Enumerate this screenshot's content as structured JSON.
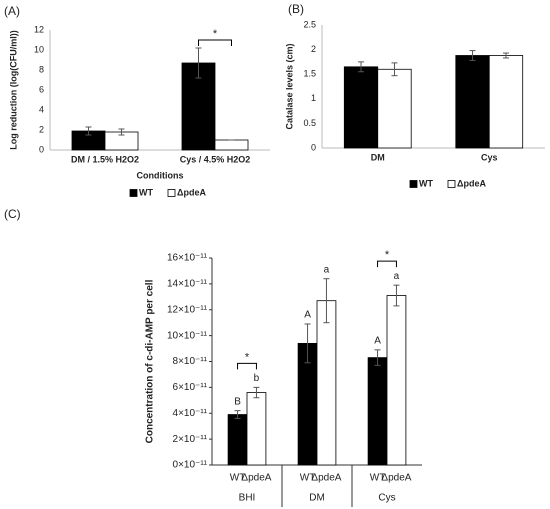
{
  "chart_data": [
    {
      "type": "bar",
      "panel": "(A)",
      "ylabel": "Log reduction (log(CFU/ml))",
      "xlabel": "Conditions",
      "categories": [
        "DM / 1.5%  H2O2",
        "Cys / 4.5%  H2O2"
      ],
      "series": [
        {
          "name": "WT",
          "color": "#000000",
          "values": [
            1.9,
            8.7
          ],
          "errors": [
            0.4,
            1.5
          ]
        },
        {
          "name": "ΔpdeA",
          "color": "#ffffff",
          "values": [
            1.8,
            1.0
          ],
          "errors": [
            0.3,
            0
          ]
        }
      ],
      "ylim": [
        0,
        12
      ],
      "yticks": [
        0,
        2,
        4,
        6,
        8,
        10,
        12
      ],
      "annotations": [
        "*"
      ],
      "legend": "bottom"
    },
    {
      "type": "bar",
      "panel": "(B)",
      "ylabel": "Catalase levels (cm)",
      "categories": [
        "DM",
        "Cys"
      ],
      "series": [
        {
          "name": "WT",
          "color": "#000000",
          "values": [
            1.65,
            1.88
          ],
          "errors": [
            0.1,
            0.1
          ]
        },
        {
          "name": "ΔpdeA",
          "color": "#ffffff",
          "values": [
            1.6,
            1.88
          ],
          "errors": [
            0.13,
            0.05
          ]
        }
      ],
      "ylim": [
        0,
        2.5
      ],
      "yticks": [
        0,
        0.5,
        1,
        1.5,
        2,
        2.5
      ],
      "legend": "bottom"
    },
    {
      "type": "bar",
      "panel": "(C)",
      "ylabel": "Concentration of c-di-AMP per cell",
      "categories": [
        "BHI",
        "DM",
        "Cys"
      ],
      "series": [
        {
          "name": "WT",
          "color": "#000000",
          "values": [
            3.9e-11,
            9.4e-11,
            8.3e-11
          ],
          "errors": [
            3e-12,
            1.5e-11,
            6e-12
          ],
          "letters": [
            "B",
            "A",
            "A"
          ]
        },
        {
          "name": "ΔpdeA",
          "color": "#ffffff",
          "values": [
            5.6e-11,
            1.27e-10,
            1.31e-10
          ],
          "errors": [
            4e-12,
            1.7e-11,
            8e-12
          ],
          "letters": [
            "b",
            "a",
            "a"
          ]
        }
      ],
      "ylim": [
        0,
        1.6e-10
      ],
      "yticks": [
        {
          "value": 0,
          "label": "0×10⁻¹¹"
        },
        {
          "value": 2e-11,
          "label": "2×10⁻¹¹"
        },
        {
          "value": 4e-11,
          "label": "4×10⁻¹¹"
        },
        {
          "value": 6e-11,
          "label": "6×10⁻¹¹"
        },
        {
          "value": 8e-11,
          "label": "8×10⁻¹¹"
        },
        {
          "value": 1e-10,
          "label": "10×10⁻¹¹"
        },
        {
          "value": 1.2e-10,
          "label": "12×10⁻¹¹"
        },
        {
          "value": 1.4e-10,
          "label": "14×10⁻¹¹"
        },
        {
          "value": 1.6e-10,
          "label": "16×10⁻¹¹"
        }
      ],
      "annotations": [
        "*",
        "*"
      ],
      "legend": "none"
    }
  ]
}
